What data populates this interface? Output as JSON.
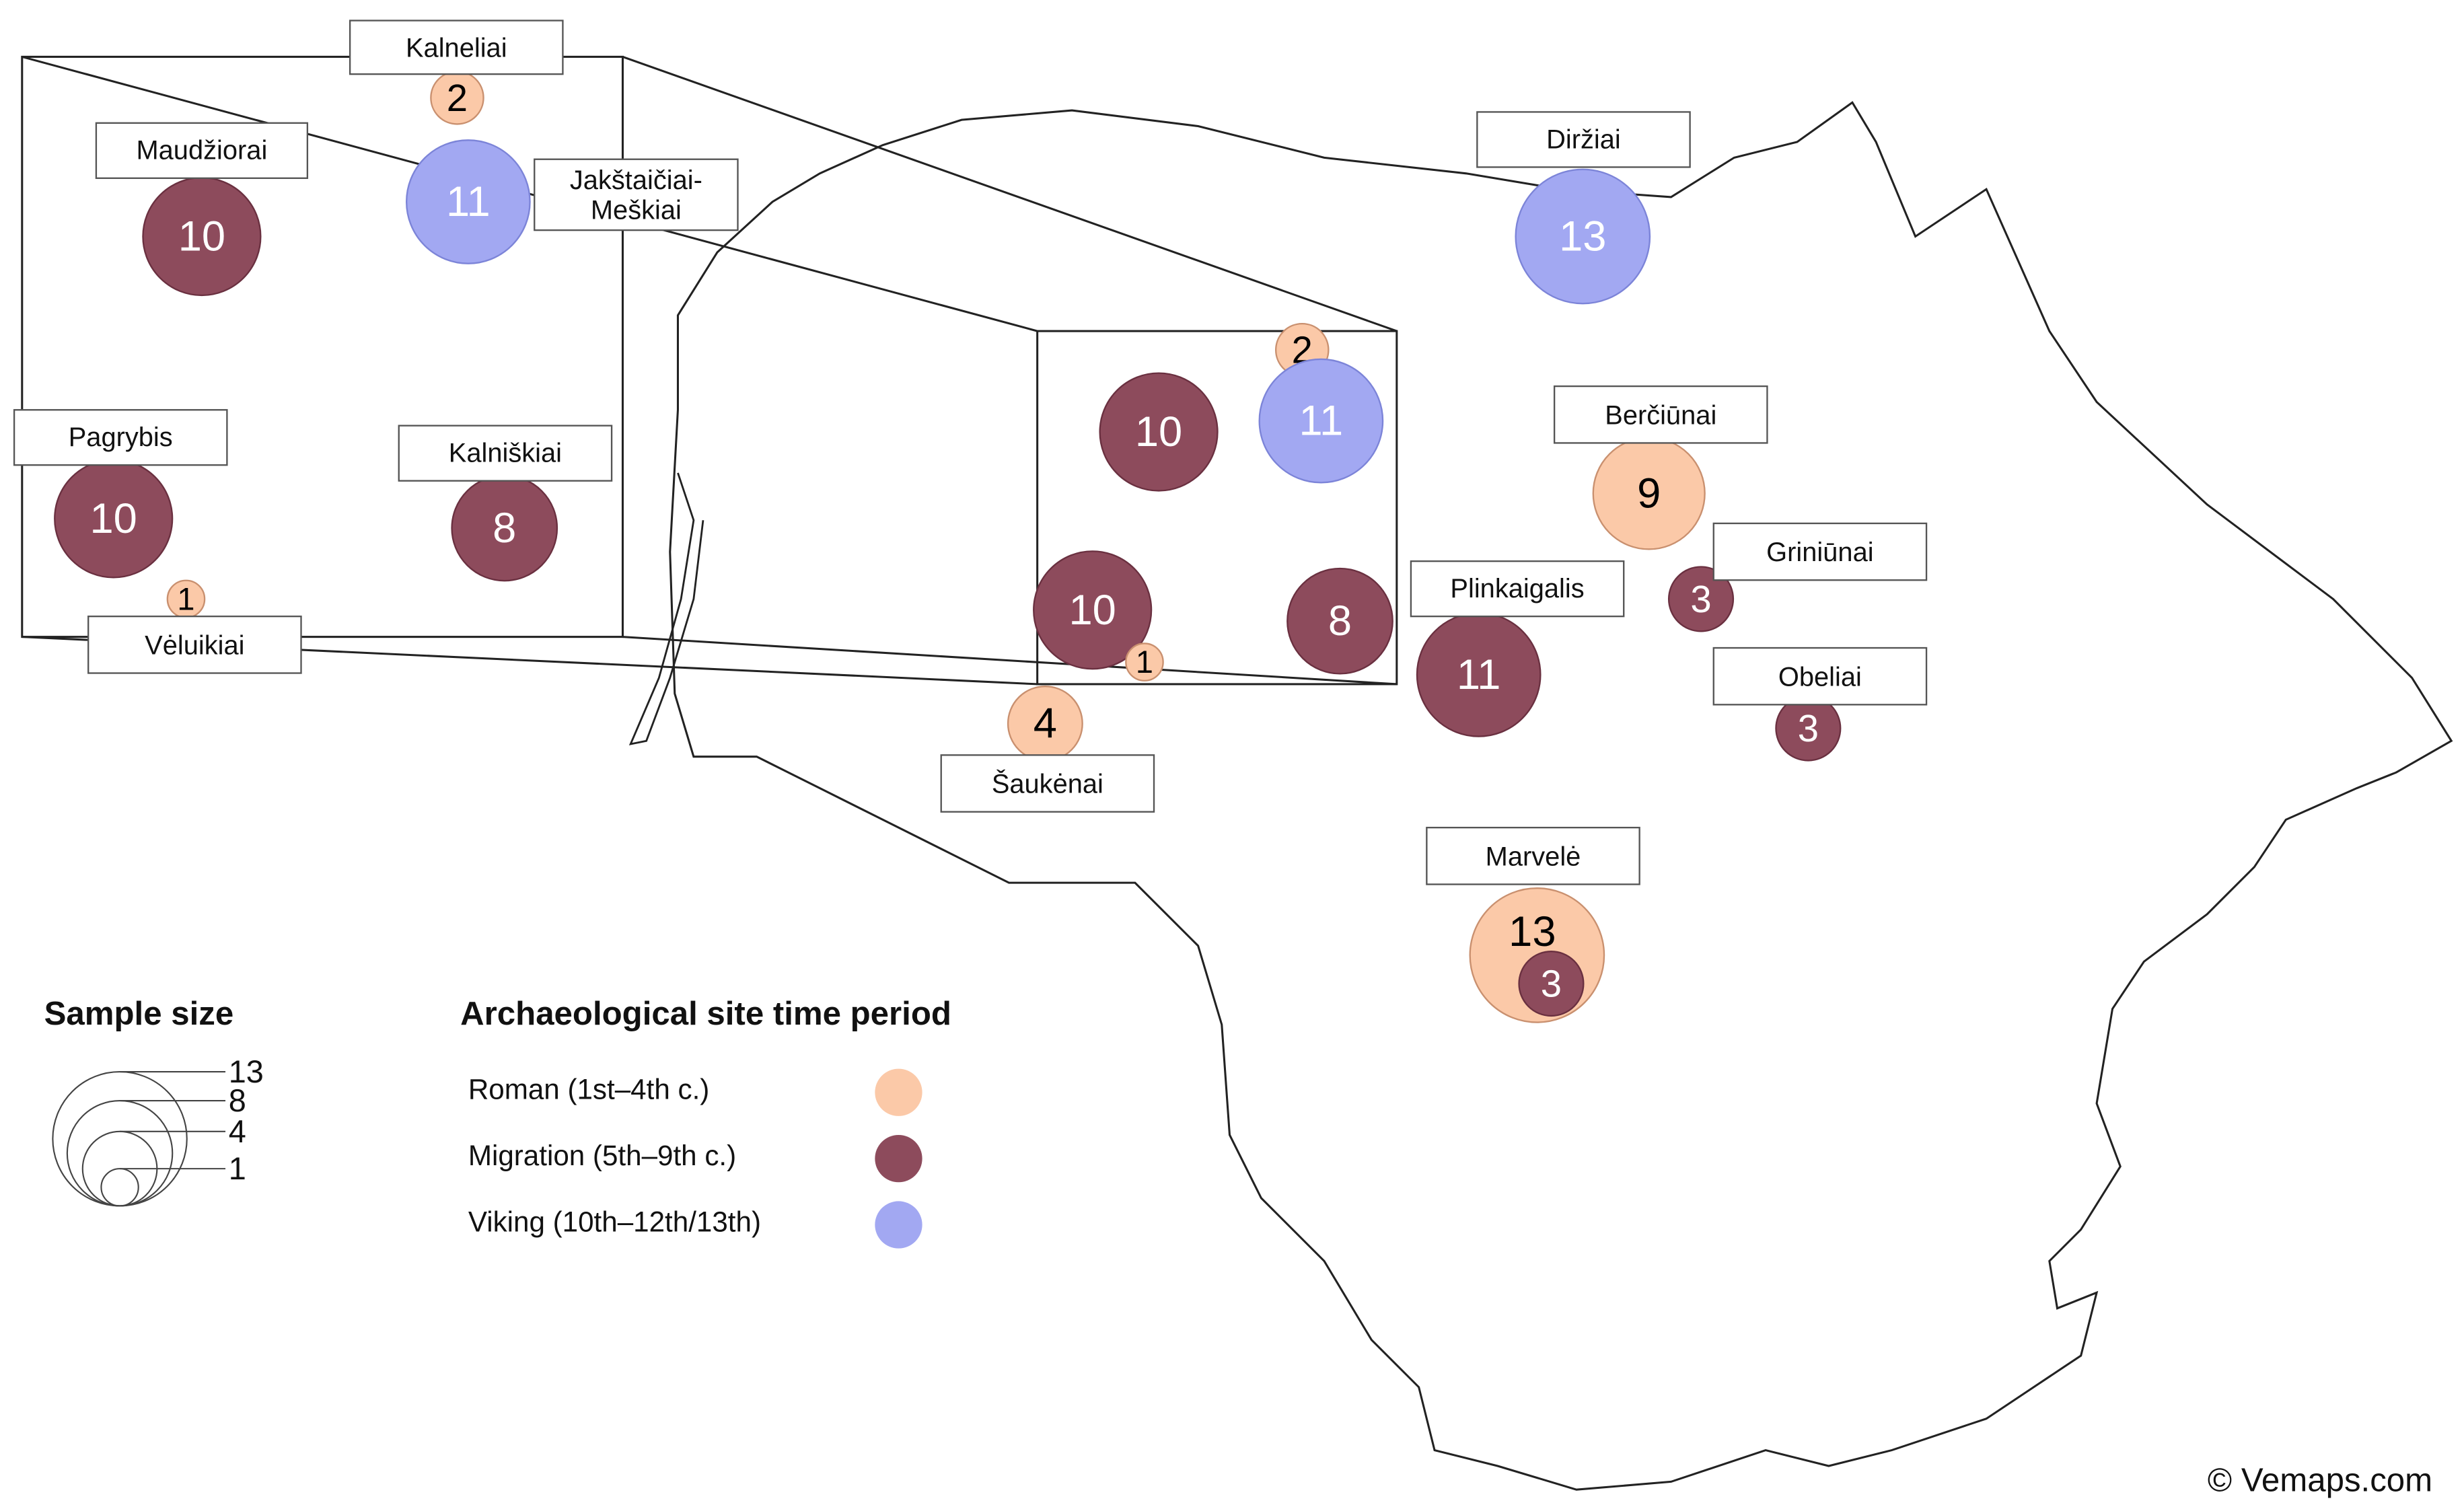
{
  "legend": {
    "size_title": "Sample size",
    "size_ticks": [
      13,
      8,
      4,
      1
    ],
    "period_title": "Archaeological site time period"
  },
  "periods": [
    {
      "name": "Roman (1st–4th c.)",
      "color": "#fbc9a8"
    },
    {
      "name": "Migration (5th–9th c.)",
      "color": "#8d4b5c"
    },
    {
      "name": "Viking (10th–12th/13th)",
      "color": "#a2a8f2"
    }
  ],
  "sites": [
    {
      "name": "Kalneliai",
      "samples": [
        {
          "period": 0,
          "n": 2
        }
      ]
    },
    {
      "name": "Maudžiorai",
      "samples": [
        {
          "period": 1,
          "n": 10
        }
      ]
    },
    {
      "name": "Jakštaičiai-Meškiai",
      "samples": [
        {
          "period": 2,
          "n": 11
        }
      ]
    },
    {
      "name": "Pagrybis",
      "samples": [
        {
          "period": 1,
          "n": 10
        }
      ]
    },
    {
      "name": "Kalniškiai",
      "samples": [
        {
          "period": 1,
          "n": 8
        }
      ]
    },
    {
      "name": "Vėluikiai",
      "samples": [
        {
          "period": 0,
          "n": 1
        }
      ]
    },
    {
      "name": "Šaukėnai",
      "samples": [
        {
          "period": 0,
          "n": 4
        }
      ]
    },
    {
      "name": "Diržiai",
      "samples": [
        {
          "period": 2,
          "n": 13
        }
      ]
    },
    {
      "name": "Berčiūnai",
      "samples": [
        {
          "period": 0,
          "n": 9
        }
      ]
    },
    {
      "name": "Plinkaigalis",
      "samples": [
        {
          "period": 1,
          "n": 11
        }
      ]
    },
    {
      "name": "Griniūnai",
      "samples": [
        {
          "period": 1,
          "n": 3
        }
      ]
    },
    {
      "name": "Obeliai",
      "samples": [
        {
          "period": 1,
          "n": 3
        }
      ]
    },
    {
      "name": "Marvelė",
      "samples": [
        {
          "period": 0,
          "n": 13
        },
        {
          "period": 1,
          "n": 3
        }
      ]
    }
  ],
  "credit": "© Vemaps.com"
}
